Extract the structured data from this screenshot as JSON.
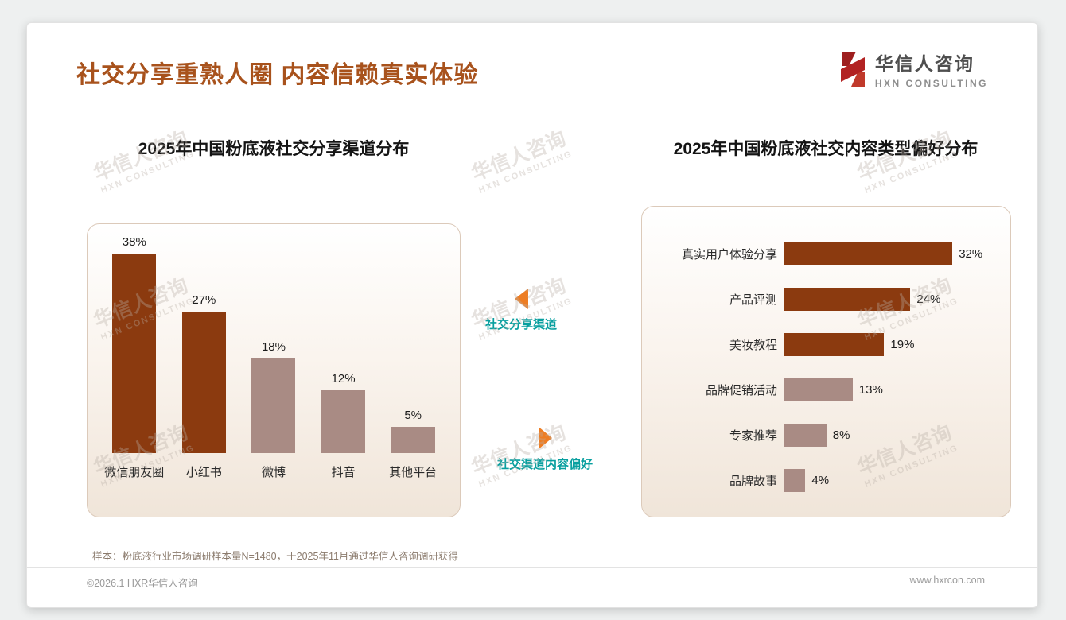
{
  "header": {
    "title": "社交分享重熟人圈 内容信赖真实体验"
  },
  "logo": {
    "name": "华信人咨询",
    "subtitle": "HXN CONSULTING"
  },
  "watermark": {
    "line1": "华信人咨询",
    "line2": "HXN CONSULTING"
  },
  "annotations": {
    "left_label": "社交分享渠道",
    "right_label": "社交渠道内容偏好"
  },
  "footnote": "样本：粉底液行业市场调研样本量N=1480，于2025年11月通过华信人咨询调研获得",
  "footer": {
    "left": "©2026.1 HXR华信人咨询",
    "right": "www.hxrcon.com"
  },
  "colors": {
    "title": "#A8521C",
    "dark_bar": "#8B3A0F",
    "light_bar": "#A98B84",
    "annotation_text": "#089F9F",
    "annotation_arrow": "#ED7D23",
    "logo_red": "#B22222"
  },
  "chart_data": [
    {
      "type": "bar",
      "orientation": "vertical",
      "title": "2025年中国粉底液社交分享渠道分布",
      "categories": [
        "微信朋友圈",
        "小红书",
        "微博",
        "抖音",
        "其他平台"
      ],
      "values": [
        38,
        27,
        18,
        12,
        5
      ],
      "unit": "%",
      "ylim": [
        0,
        40
      ],
      "grid": false,
      "legend": "none",
      "bar_colors": [
        "#8B3A0F",
        "#8B3A0F",
        "#A98B84",
        "#A98B84",
        "#A98B84"
      ]
    },
    {
      "type": "bar",
      "orientation": "horizontal",
      "title": "2025年中国粉底液社交内容类型偏好分布",
      "categories": [
        "真实用户体验分享",
        "产品评测",
        "美妆教程",
        "品牌促销活动",
        "专家推荐",
        "品牌故事"
      ],
      "values": [
        32,
        24,
        19,
        13,
        8,
        4
      ],
      "unit": "%",
      "xlim": [
        0,
        35
      ],
      "grid": false,
      "legend": "none",
      "bar_colors": [
        "#8B3A0F",
        "#8B3A0F",
        "#8B3A0F",
        "#A98B84",
        "#A98B84",
        "#A98B84"
      ]
    }
  ]
}
